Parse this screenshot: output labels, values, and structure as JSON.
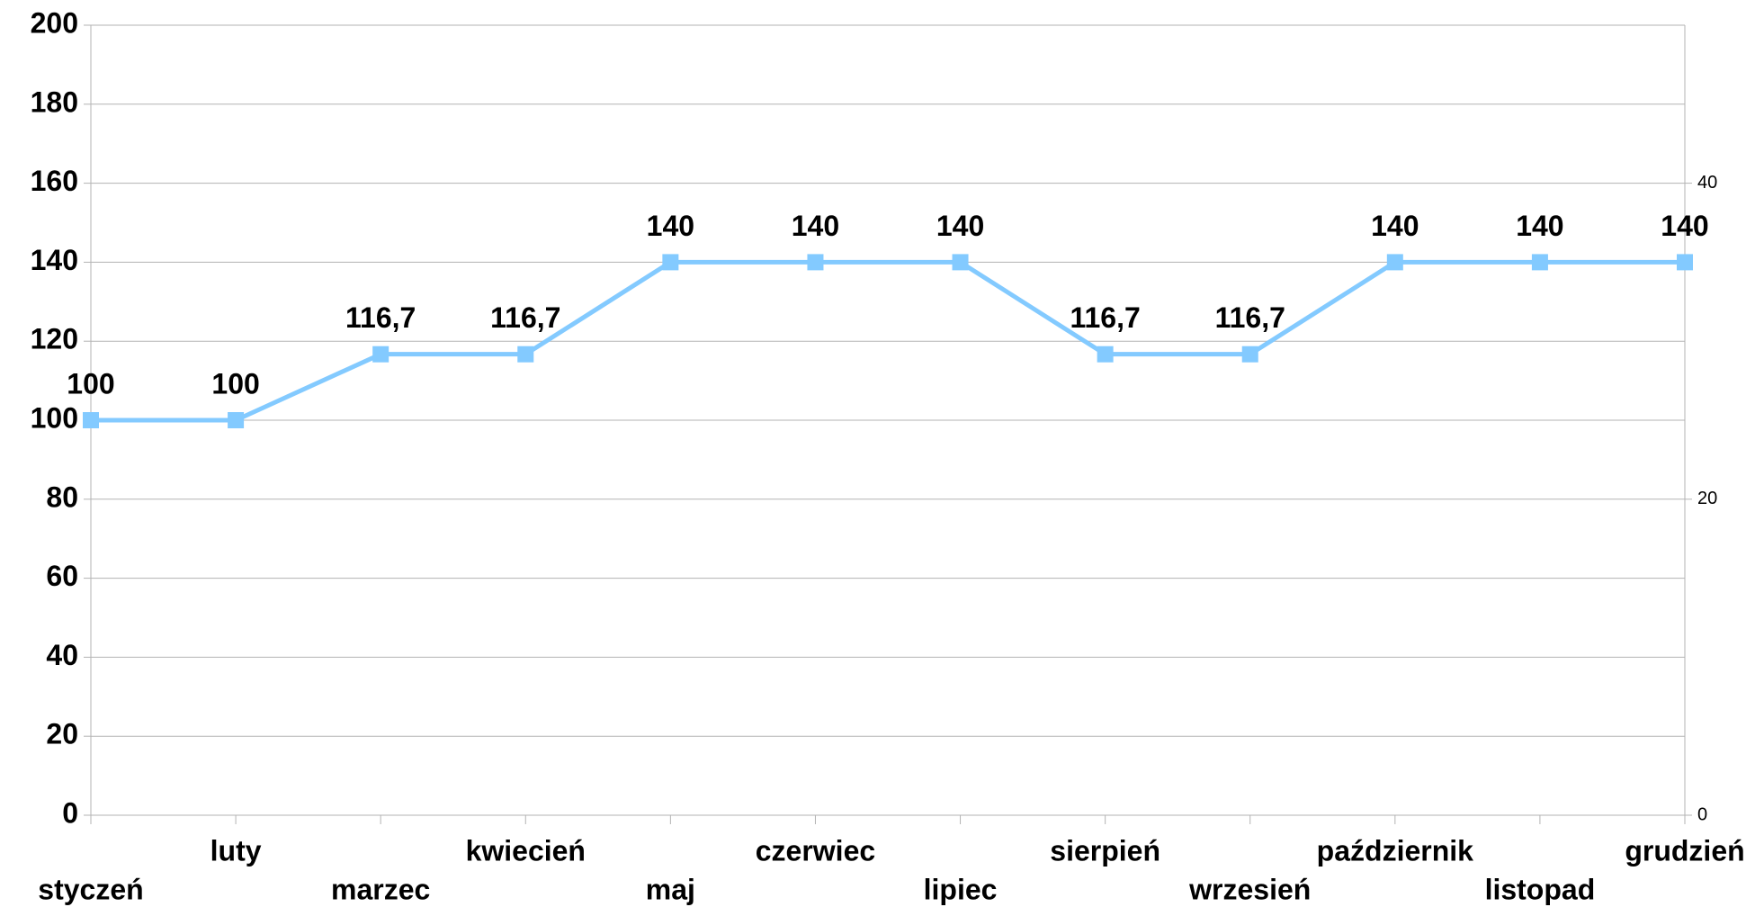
{
  "chart_data": {
    "type": "line",
    "categories": [
      "styczeń",
      "luty",
      "marzec",
      "kwiecień",
      "maj",
      "czerwiec",
      "lipiec",
      "sierpień",
      "wrzesień",
      "październik",
      "listopad",
      "grudzień"
    ],
    "series": [
      {
        "name": "",
        "color": "#83caff",
        "values": [
          100,
          100,
          116.7,
          116.7,
          140,
          140,
          140,
          116.7,
          116.7,
          140,
          140,
          140
        ],
        "value_labels": [
          "100",
          "100",
          "116,7",
          "116,7",
          "140",
          "140",
          "140",
          "116,7",
          "116,7",
          "140",
          "140",
          "140"
        ]
      }
    ],
    "ylim": [
      0,
      200
    ],
    "yticks": [
      0,
      20,
      40,
      60,
      80,
      100,
      120,
      140,
      160,
      180,
      200
    ],
    "y2lim": [
      0,
      50
    ],
    "y2ticks": [
      0,
      20,
      40
    ],
    "grid": true
  }
}
